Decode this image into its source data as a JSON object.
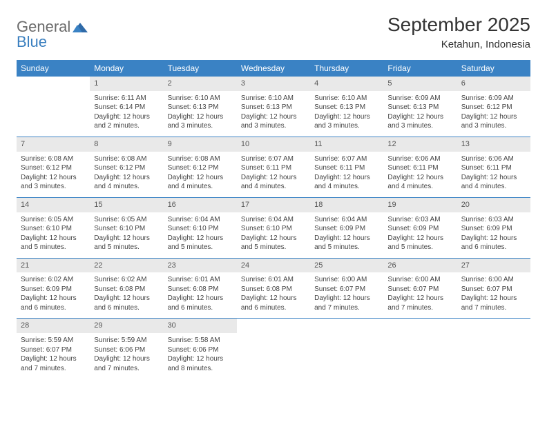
{
  "logo": {
    "general": "General",
    "blue": "Blue"
  },
  "title": "September 2025",
  "location": "Ketahun, Indonesia",
  "weekdays": [
    "Sunday",
    "Monday",
    "Tuesday",
    "Wednesday",
    "Thursday",
    "Friday",
    "Saturday"
  ],
  "colors": {
    "header_bg": "#3a82c4",
    "header_fg": "#ffffff",
    "daynum_bg": "#e9e9e9",
    "rule": "#3a82c4",
    "logo_gray": "#6b6b6b",
    "logo_blue": "#3a7fbf"
  },
  "start_offset": 1,
  "days": [
    {
      "n": "1",
      "sr": "6:11 AM",
      "ss": "6:14 PM",
      "dl": "12 hours and 2 minutes."
    },
    {
      "n": "2",
      "sr": "6:10 AM",
      "ss": "6:13 PM",
      "dl": "12 hours and 3 minutes."
    },
    {
      "n": "3",
      "sr": "6:10 AM",
      "ss": "6:13 PM",
      "dl": "12 hours and 3 minutes."
    },
    {
      "n": "4",
      "sr": "6:10 AM",
      "ss": "6:13 PM",
      "dl": "12 hours and 3 minutes."
    },
    {
      "n": "5",
      "sr": "6:09 AM",
      "ss": "6:13 PM",
      "dl": "12 hours and 3 minutes."
    },
    {
      "n": "6",
      "sr": "6:09 AM",
      "ss": "6:12 PM",
      "dl": "12 hours and 3 minutes."
    },
    {
      "n": "7",
      "sr": "6:08 AM",
      "ss": "6:12 PM",
      "dl": "12 hours and 3 minutes."
    },
    {
      "n": "8",
      "sr": "6:08 AM",
      "ss": "6:12 PM",
      "dl": "12 hours and 4 minutes."
    },
    {
      "n": "9",
      "sr": "6:08 AM",
      "ss": "6:12 PM",
      "dl": "12 hours and 4 minutes."
    },
    {
      "n": "10",
      "sr": "6:07 AM",
      "ss": "6:11 PM",
      "dl": "12 hours and 4 minutes."
    },
    {
      "n": "11",
      "sr": "6:07 AM",
      "ss": "6:11 PM",
      "dl": "12 hours and 4 minutes."
    },
    {
      "n": "12",
      "sr": "6:06 AM",
      "ss": "6:11 PM",
      "dl": "12 hours and 4 minutes."
    },
    {
      "n": "13",
      "sr": "6:06 AM",
      "ss": "6:11 PM",
      "dl": "12 hours and 4 minutes."
    },
    {
      "n": "14",
      "sr": "6:05 AM",
      "ss": "6:10 PM",
      "dl": "12 hours and 5 minutes."
    },
    {
      "n": "15",
      "sr": "6:05 AM",
      "ss": "6:10 PM",
      "dl": "12 hours and 5 minutes."
    },
    {
      "n": "16",
      "sr": "6:04 AM",
      "ss": "6:10 PM",
      "dl": "12 hours and 5 minutes."
    },
    {
      "n": "17",
      "sr": "6:04 AM",
      "ss": "6:10 PM",
      "dl": "12 hours and 5 minutes."
    },
    {
      "n": "18",
      "sr": "6:04 AM",
      "ss": "6:09 PM",
      "dl": "12 hours and 5 minutes."
    },
    {
      "n": "19",
      "sr": "6:03 AM",
      "ss": "6:09 PM",
      "dl": "12 hours and 5 minutes."
    },
    {
      "n": "20",
      "sr": "6:03 AM",
      "ss": "6:09 PM",
      "dl": "12 hours and 6 minutes."
    },
    {
      "n": "21",
      "sr": "6:02 AM",
      "ss": "6:09 PM",
      "dl": "12 hours and 6 minutes."
    },
    {
      "n": "22",
      "sr": "6:02 AM",
      "ss": "6:08 PM",
      "dl": "12 hours and 6 minutes."
    },
    {
      "n": "23",
      "sr": "6:01 AM",
      "ss": "6:08 PM",
      "dl": "12 hours and 6 minutes."
    },
    {
      "n": "24",
      "sr": "6:01 AM",
      "ss": "6:08 PM",
      "dl": "12 hours and 6 minutes."
    },
    {
      "n": "25",
      "sr": "6:00 AM",
      "ss": "6:07 PM",
      "dl": "12 hours and 7 minutes."
    },
    {
      "n": "26",
      "sr": "6:00 AM",
      "ss": "6:07 PM",
      "dl": "12 hours and 7 minutes."
    },
    {
      "n": "27",
      "sr": "6:00 AM",
      "ss": "6:07 PM",
      "dl": "12 hours and 7 minutes."
    },
    {
      "n": "28",
      "sr": "5:59 AM",
      "ss": "6:07 PM",
      "dl": "12 hours and 7 minutes."
    },
    {
      "n": "29",
      "sr": "5:59 AM",
      "ss": "6:06 PM",
      "dl": "12 hours and 7 minutes."
    },
    {
      "n": "30",
      "sr": "5:58 AM",
      "ss": "6:06 PM",
      "dl": "12 hours and 8 minutes."
    }
  ],
  "labels": {
    "sunrise": "Sunrise: ",
    "sunset": "Sunset: ",
    "daylight": "Daylight: "
  }
}
